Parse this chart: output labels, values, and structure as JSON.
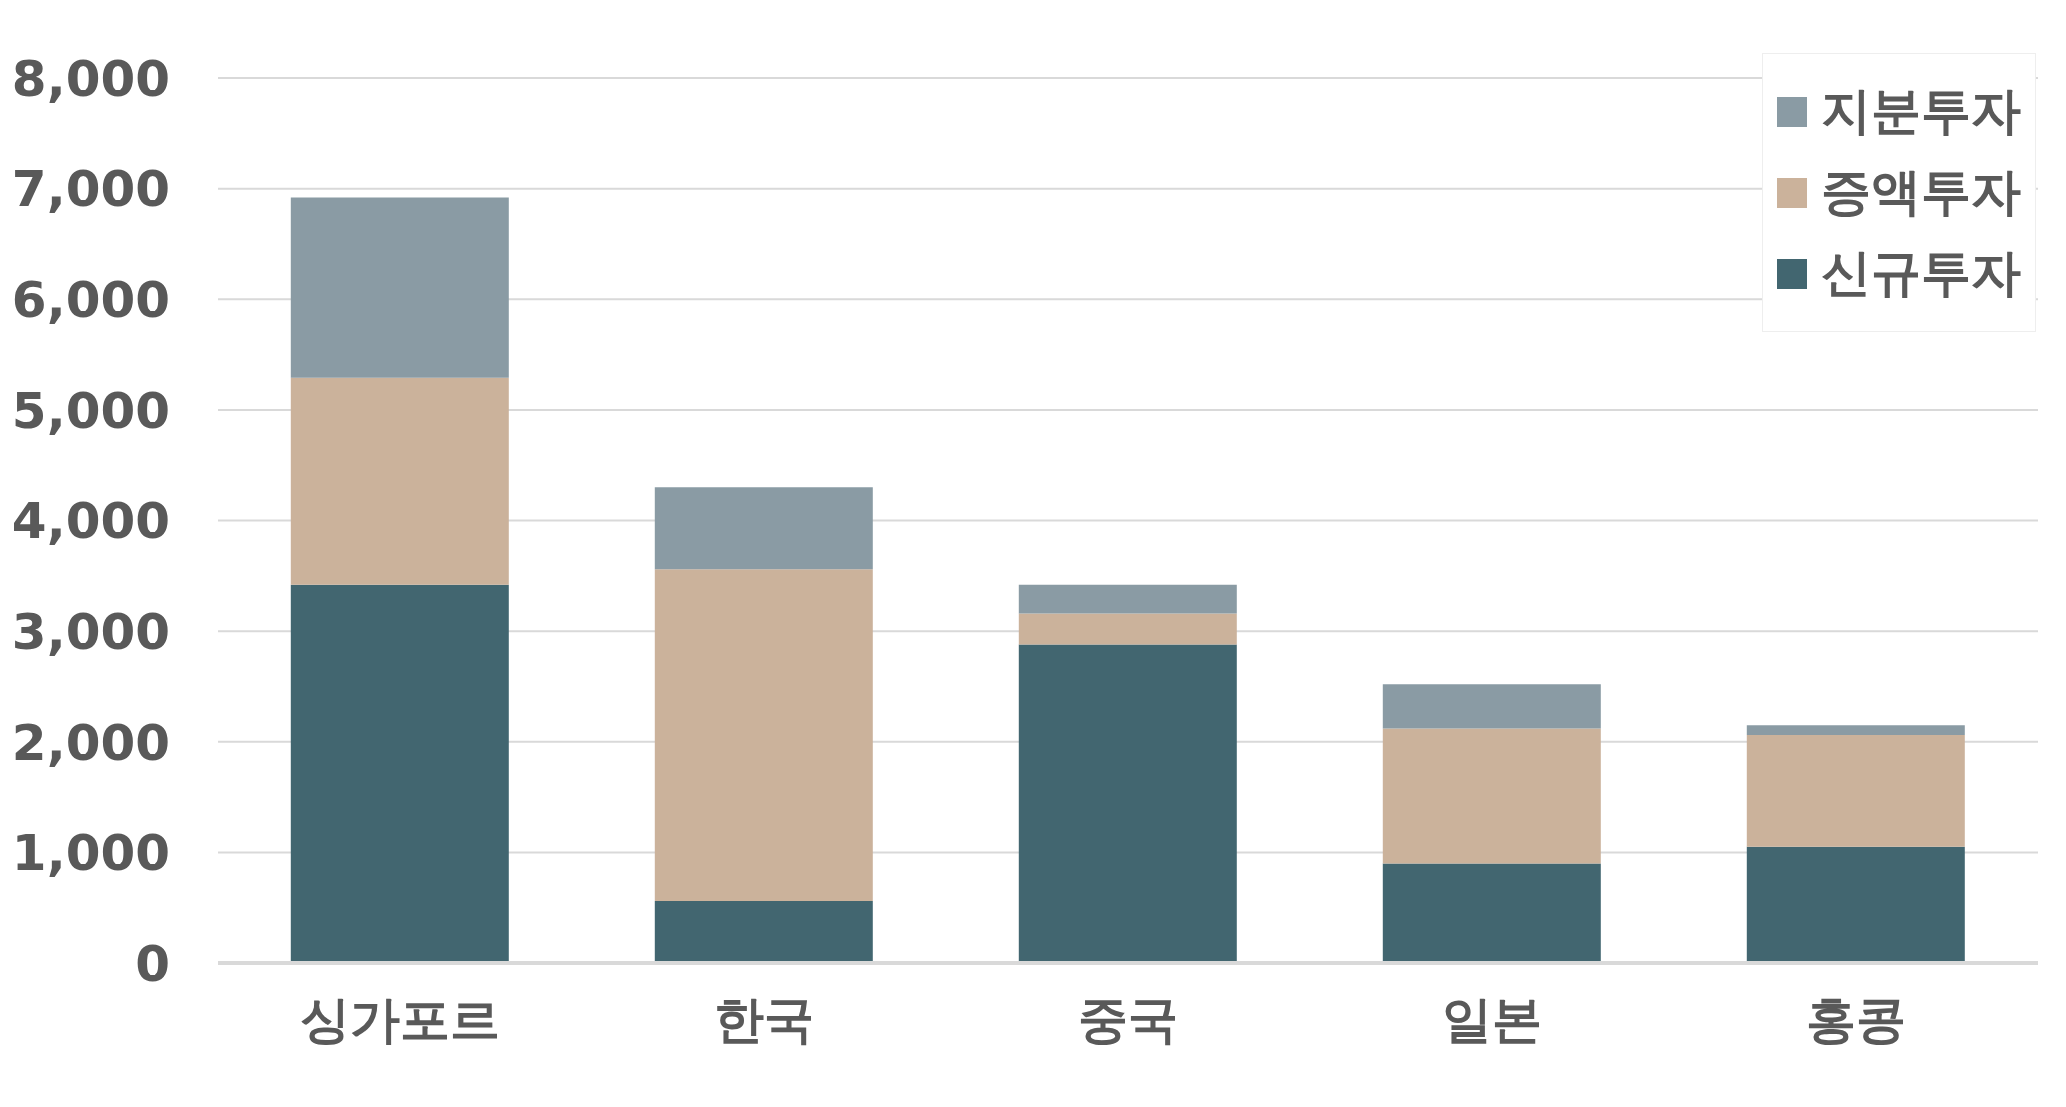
{
  "chart_data": {
    "type": "bar",
    "stacked": true,
    "categories": [
      "싱가포르",
      "한국",
      "중국",
      "일본",
      "홍콩"
    ],
    "series": [
      {
        "name": "신규투자",
        "color": "#426670",
        "values": [
          3420,
          560,
          2880,
          900,
          1050
        ]
      },
      {
        "name": "증액투자",
        "color": "#cbb29b",
        "values": [
          1870,
          3000,
          280,
          1220,
          1010
        ]
      },
      {
        "name": "지분투자",
        "color": "#8a9ba4",
        "values": [
          1630,
          740,
          260,
          400,
          90
        ]
      }
    ],
    "ylim": [
      0,
      8000
    ],
    "yticks": [
      0,
      {
        "value": 1000,
        "label": "1,000"
      },
      {
        "value": 2000,
        "label": "2,000"
      },
      {
        "value": 3000,
        "label": "3,000"
      },
      {
        "value": 4000,
        "label": "4,000"
      },
      {
        "value": 5000,
        "label": "5,000"
      },
      {
        "value": 6000,
        "label": "6,000"
      },
      {
        "value": 7000,
        "label": "7,000"
      },
      {
        "value": 8000,
        "label": "8,000"
      }
    ],
    "grid": "y",
    "legend": "top right"
  }
}
